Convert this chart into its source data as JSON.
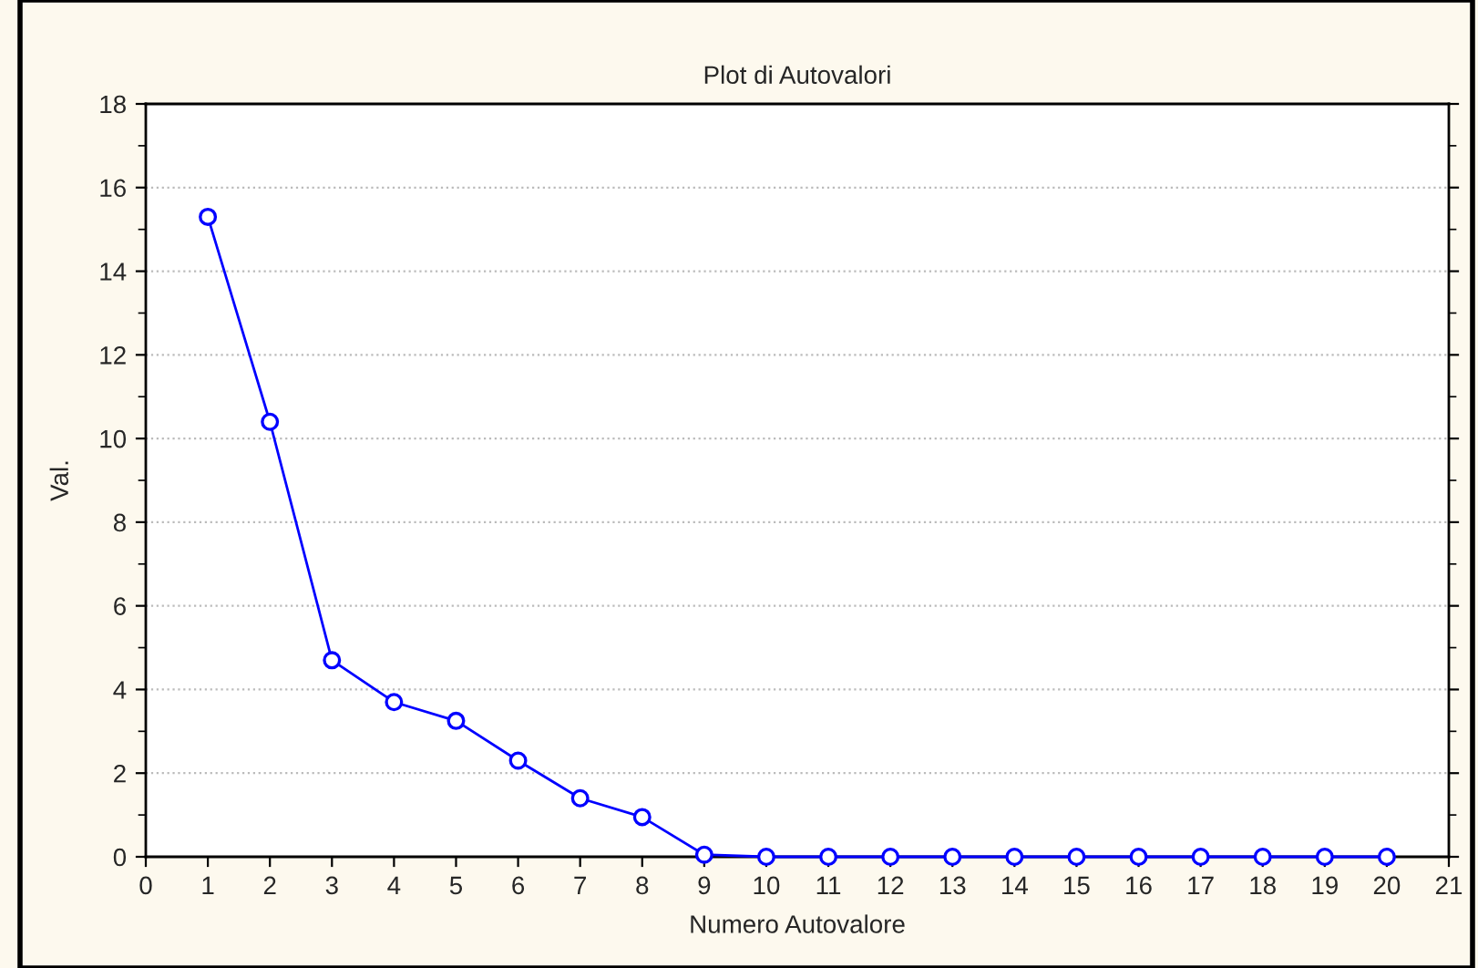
{
  "chart_data": {
    "type": "line",
    "title": "Plot di Autovalori",
    "xlabel": "Numero Autovalore",
    "ylabel": "Val.",
    "x": [
      1,
      2,
      3,
      4,
      5,
      6,
      7,
      8,
      9,
      10,
      11,
      12,
      13,
      14,
      15,
      16,
      17,
      18,
      19,
      20
    ],
    "series": [
      {
        "color": "#0000ff",
        "values": [
          15.3,
          10.4,
          4.7,
          3.7,
          3.25,
          2.3,
          1.4,
          0.95,
          0.05,
          0,
          0,
          0,
          0,
          0,
          0,
          0,
          0,
          0,
          0,
          0
        ]
      }
    ],
    "xlim": [
      0,
      21
    ],
    "xticks": [
      0,
      1,
      2,
      3,
      4,
      5,
      6,
      7,
      8,
      9,
      10,
      11,
      12,
      13,
      14,
      15,
      16,
      17,
      18,
      19,
      20,
      21
    ],
    "ylim": [
      0,
      18
    ],
    "yticks": [
      0,
      2,
      4,
      6,
      8,
      10,
      12,
      14,
      16,
      18
    ],
    "grid": "y",
    "marker": "circle",
    "line_style": "solid"
  }
}
